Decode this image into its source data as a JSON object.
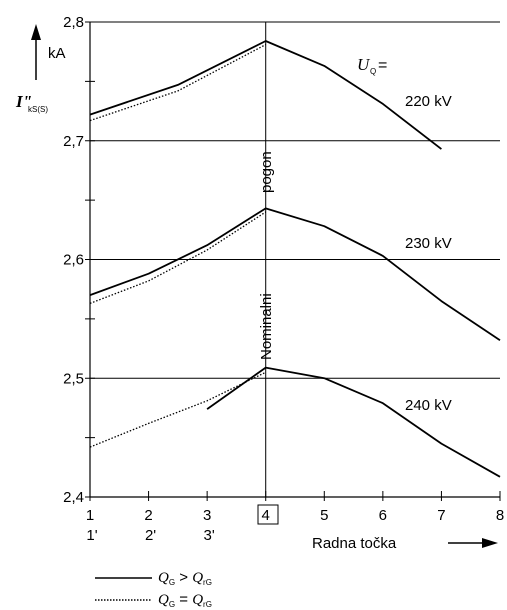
{
  "chart_data": {
    "type": "line",
    "x": [
      1,
      2,
      3,
      4,
      5,
      6,
      7,
      8
    ],
    "x_tick_labels": [
      "1",
      "2",
      "3",
      "4",
      "5",
      "6",
      "7",
      "8"
    ],
    "x_tick_labels_secondary": [
      "1'",
      "2'",
      "3'"
    ],
    "y_ticks": [
      2.4,
      2.5,
      2.6,
      2.7,
      2.8
    ],
    "y_tick_labels": [
      "2,4",
      "2,5",
      "2,6",
      "2,7",
      "2,8"
    ],
    "xlim": [
      1,
      8
    ],
    "ylim": [
      2.4,
      2.8
    ],
    "ylabel": "I\"",
    "ylabel_subscript": "kS(S)",
    "yunit": "kA",
    "xlabel": "Radna točka",
    "grid": "horizontal at major ticks",
    "vertical_marker": {
      "x": 4,
      "label": "Nominalni pogon",
      "label_word1": "Nominalni",
      "label_word2": "pogon"
    },
    "boxed_tick": "4",
    "parameter_label": "U",
    "parameter_subscript": "Q",
    "parameter_suffix": " =",
    "curve_labels": [
      "220 kV",
      "230 kV",
      "240 kV"
    ],
    "series": [
      {
        "group": "220 kV",
        "style": "solid",
        "x": [
          1,
          2.5,
          4,
          5,
          6,
          7
        ],
        "y": [
          2.722,
          2.747,
          2.784,
          2.763,
          2.731,
          2.693
        ]
      },
      {
        "group": "220 kV",
        "style": "dotted",
        "x": [
          1,
          2.5,
          4
        ],
        "y": [
          2.717,
          2.742,
          2.781
        ]
      },
      {
        "group": "230 kV",
        "style": "solid",
        "x": [
          1,
          2,
          3,
          4,
          5,
          6,
          7,
          8
        ],
        "y": [
          2.57,
          2.588,
          2.612,
          2.643,
          2.628,
          2.603,
          2.565,
          2.532
        ]
      },
      {
        "group": "230 kV",
        "style": "dotted",
        "x": [
          1,
          2,
          3,
          4
        ],
        "y": [
          2.563,
          2.582,
          2.608,
          2.64
        ]
      },
      {
        "group": "240 kV",
        "style": "solid",
        "x": [
          3,
          4,
          5,
          6,
          7,
          8
        ],
        "y": [
          2.474,
          2.509,
          2.5,
          2.479,
          2.445,
          2.417
        ]
      },
      {
        "group": "240 kV",
        "style": "dotted",
        "x": [
          1,
          2,
          3,
          4
        ],
        "y": [
          2.442,
          2.462,
          2.481,
          2.505
        ]
      }
    ],
    "legend": {
      "placement": "bottom-left",
      "entries": [
        {
          "style": "solid",
          "text_main": "Q",
          "text_sub": "G",
          "text_op": " > ",
          "text_main2": "Q",
          "text_sub2": "rG"
        },
        {
          "style": "dotted",
          "text_main": "Q",
          "text_sub": "G",
          "text_op": " = ",
          "text_main2": "Q",
          "text_sub2": "rG"
        }
      ]
    }
  }
}
